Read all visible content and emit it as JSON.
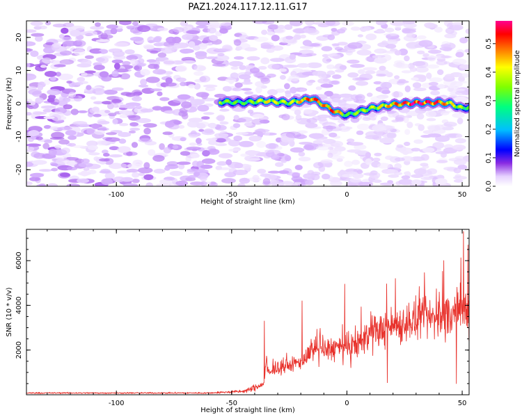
{
  "title": "PAZ1.2024.117.12.11.G17",
  "chart_data": [
    {
      "type": "heatmap",
      "title": "PAZ1.2024.117.12.11.G17",
      "xlabel": "Height of straight line (km)",
      "ylabel": "Frequency (Hz)",
      "xlim": [
        -139,
        53
      ],
      "ylim": [
        -25,
        25
      ],
      "xticks": [
        "-100",
        "-50",
        "0",
        "50"
      ],
      "xtick_values": [
        -100,
        -50,
        0,
        50
      ],
      "yticks": [
        "-20",
        "-10",
        "0",
        "10",
        "20"
      ],
      "ytick_values": [
        -20,
        -10,
        0,
        10,
        20
      ],
      "colorbar": {
        "label": "Normalized spectral amplitude",
        "range": [
          0,
          0.58
        ],
        "ticks": [
          "0.0",
          "0.1",
          "0.2",
          "0.3",
          "0.4",
          "0.5"
        ],
        "tick_values": [
          0,
          0.1,
          0.2,
          0.3,
          0.4,
          0.5
        ],
        "colormap": [
          "#ffffff",
          "#d9b8ff",
          "#8a2be2",
          "#0000ff",
          "#00bfff",
          "#00ff80",
          "#80ff00",
          "#ffff00",
          "#ff8000",
          "#ff0000",
          "#ff00aa"
        ]
      },
      "signal_track": {
        "description_points_x": [
          -55,
          -45,
          -35,
          -25,
          -15,
          -10,
          -5,
          0,
          5,
          10,
          20,
          30,
          40,
          45,
          50,
          53
        ],
        "frequency_hz": [
          0.5,
          0.3,
          0.8,
          0.2,
          1.5,
          -0.5,
          -2.5,
          -3.5,
          -2.5,
          -1.5,
          -0.3,
          0.2,
          0.3,
          0.0,
          -1.5,
          -1.0
        ],
        "peak_amplitude": [
          0.35,
          0.3,
          0.4,
          0.35,
          0.5,
          0.45,
          0.5,
          0.3,
          0.35,
          0.35,
          0.45,
          0.55,
          0.5,
          0.4,
          0.35,
          0.3
        ]
      },
      "background_noise_amplitude": 0.1
    },
    {
      "type": "line",
      "xlabel": "Height of straight line (km)",
      "ylabel": "SNR (10 * v/v)",
      "xlim": [
        -139,
        53
      ],
      "ylim": [
        0,
        7400
      ],
      "xticks": [
        "-100",
        "-50",
        "0",
        "50"
      ],
      "xtick_values": [
        -100,
        -50,
        0,
        50
      ],
      "yticks": [
        "2000",
        "4000",
        "6000"
      ],
      "ytick_values": [
        2000,
        4000,
        6000
      ],
      "color": "#e8322c",
      "envelope_x": [
        -139,
        -60,
        -45,
        -40,
        -36,
        -35,
        -34,
        -33,
        -30,
        -25,
        -20,
        -15,
        -10,
        -5,
        0,
        5,
        10,
        15,
        20,
        25,
        30,
        35,
        40,
        45,
        50,
        53
      ],
      "envelope_mean": [
        80,
        80,
        150,
        300,
        500,
        1500,
        900,
        1000,
        1200,
        1300,
        1500,
        1900,
        2000,
        2100,
        2000,
        2300,
        2700,
        2900,
        3100,
        3200,
        3300,
        3400,
        3500,
        3600,
        3800,
        3700
      ],
      "envelope_spread": [
        60,
        60,
        150,
        300,
        200,
        900,
        600,
        500,
        500,
        600,
        700,
        900,
        1000,
        1100,
        1200,
        1300,
        1400,
        1500,
        1600,
        1700,
        1700,
        1800,
        1900,
        1900,
        2000,
        2000
      ],
      "peaks": [
        {
          "x": -35.8,
          "y": 3300
        },
        {
          "x": -19.5,
          "y": 4200
        },
        {
          "x": -1,
          "y": 4950
        },
        {
          "x": 17.5,
          "y": 540
        },
        {
          "x": 21,
          "y": 5200
        },
        {
          "x": 42,
          "y": 6000
        },
        {
          "x": 47.5,
          "y": 500
        },
        {
          "x": 50.5,
          "y": 7300
        },
        {
          "x": 52.5,
          "y": 6700
        }
      ]
    }
  ]
}
